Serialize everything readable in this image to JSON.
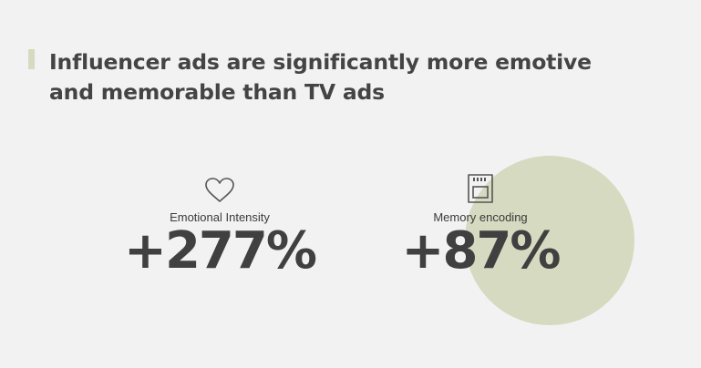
{
  "headline": {
    "line1": "Influencer ads are significantly more emotive",
    "line2": "and memorable than TV ads"
  },
  "stats": [
    {
      "icon": "heart-icon",
      "label": "Emotional Intensity",
      "value": "+277%"
    },
    {
      "icon": "memory-card-icon",
      "label": "Memory encoding",
      "value": "+87%"
    }
  ],
  "colors": {
    "background": "#f2f2f2",
    "accent": "#d5dac0",
    "text": "#444444"
  }
}
